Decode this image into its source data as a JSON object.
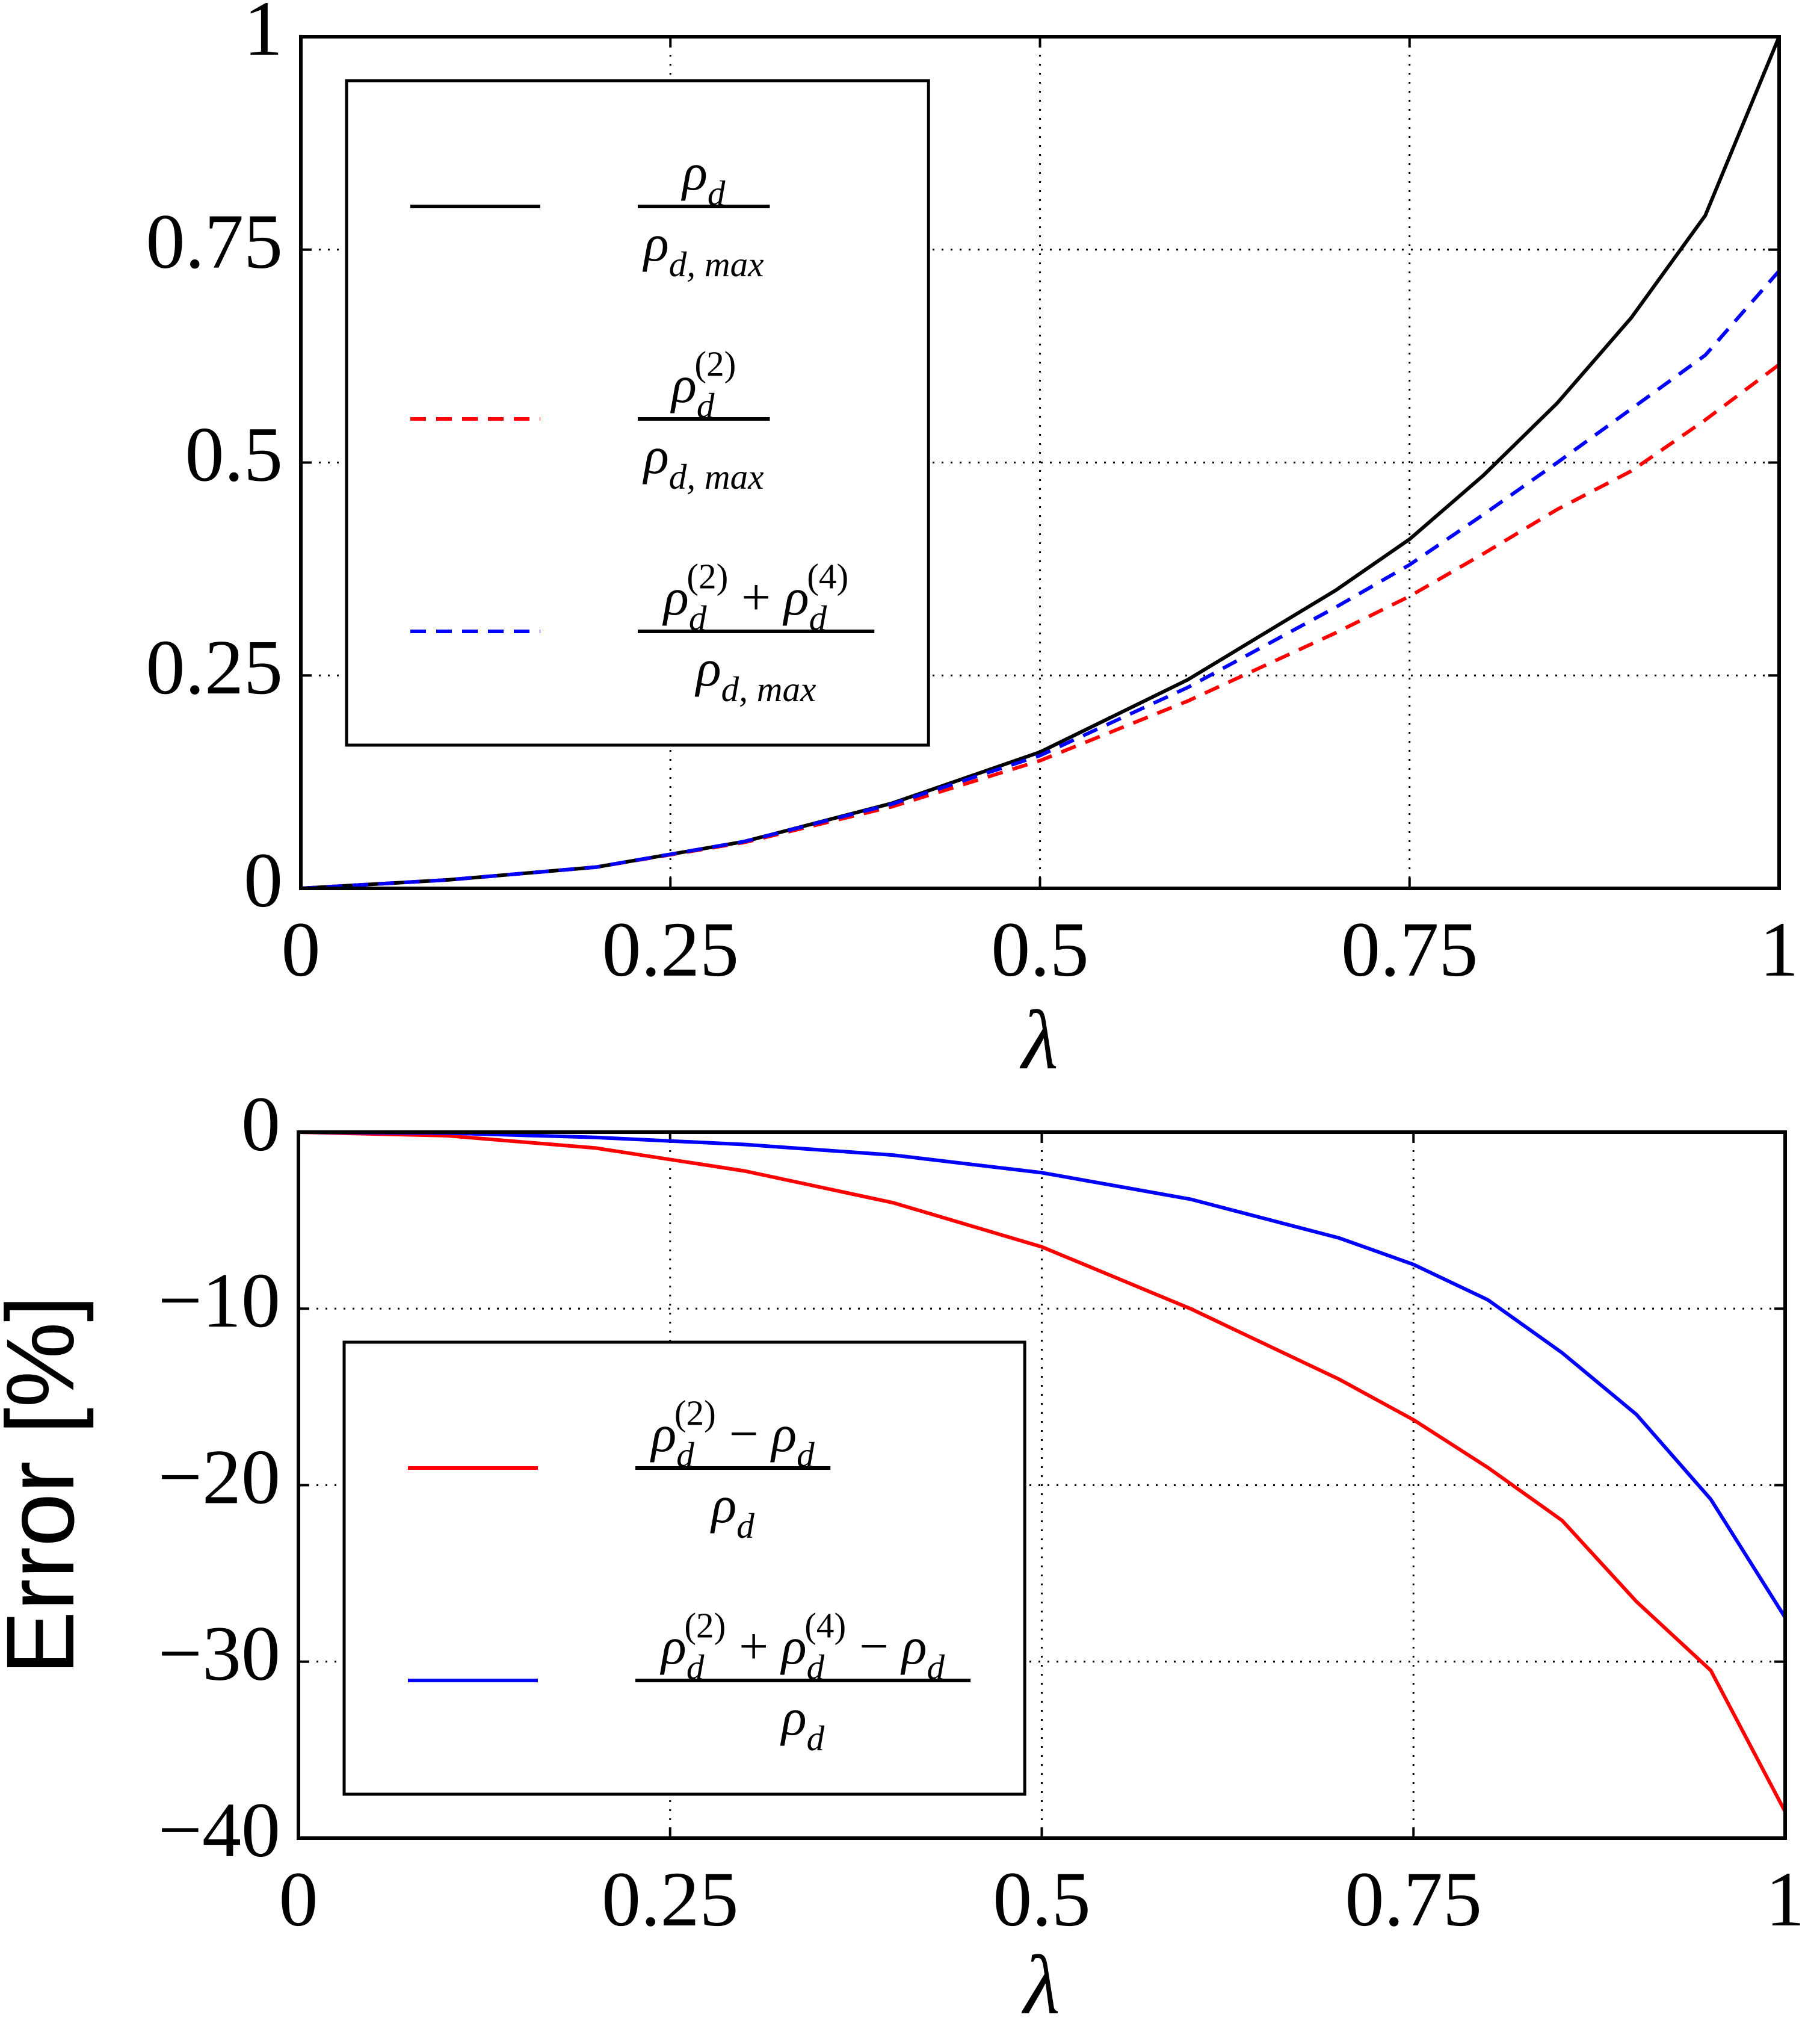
{
  "chart_data": [
    {
      "type": "line",
      "x": [
        0,
        0.1,
        0.2,
        0.3,
        0.4,
        0.5,
        0.6,
        0.7,
        0.75,
        0.8,
        0.85,
        0.9,
        0.95,
        1
      ],
      "series": [
        {
          "name": {
            "numerator": "ρd",
            "denominator": "ρd, max"
          },
          "color": "#000000",
          "linestyle": "solid",
          "values": [
            0,
            0.01,
            0.025,
            0.055,
            0.1,
            0.16,
            0.245,
            0.35,
            0.41,
            0.485,
            0.57,
            0.67,
            0.79,
            1
          ]
        },
        {
          "name": {
            "numerator": "ρd(2)",
            "denominator": "ρd, max"
          },
          "color": "#ff0000",
          "linestyle": "dashed",
          "values": [
            0,
            0.01,
            0.025,
            0.054,
            0.096,
            0.15,
            0.22,
            0.3,
            0.343,
            0.393,
            0.445,
            0.49,
            0.55,
            0.615
          ]
        },
        {
          "name": {
            "numerator": "ρd(2) + ρd(4)",
            "denominator": "ρd, max"
          },
          "color": "#0000ff",
          "linestyle": "dashed",
          "values": [
            0,
            0.01,
            0.025,
            0.055,
            0.099,
            0.156,
            0.236,
            0.33,
            0.38,
            0.439,
            0.5,
            0.563,
            0.626,
            0.725
          ]
        }
      ],
      "xlim": [
        0,
        1
      ],
      "ylim": [
        0,
        1
      ],
      "xticks": [
        0,
        0.25,
        0.5,
        0.75,
        1
      ],
      "yticks": [
        0,
        0.25,
        0.5,
        0.75,
        1
      ],
      "xlabel": "λ",
      "grid": true,
      "legend": "upper left"
    },
    {
      "type": "line",
      "x": [
        0,
        0.1,
        0.2,
        0.3,
        0.4,
        0.5,
        0.6,
        0.7,
        0.75,
        0.8,
        0.85,
        0.9,
        0.95,
        1
      ],
      "series": [
        {
          "name": {
            "numerator": "ρd(2) − ρd",
            "denominator": "ρd"
          },
          "color": "#ff0000",
          "linestyle": "solid",
          "values": [
            0,
            -0.2,
            -0.9,
            -2.2,
            -4,
            -6.5,
            -10,
            -14,
            -16.3,
            -19,
            -22,
            -26.6,
            -30.5,
            -38.5
          ]
        },
        {
          "name": {
            "numerator": "ρd(2) + ρd(4) − ρd",
            "denominator": "ρd"
          },
          "color": "#0000ff",
          "linestyle": "solid",
          "values": [
            0,
            -0.05,
            -0.3,
            -0.7,
            -1.3,
            -2.3,
            -3.8,
            -6,
            -7.5,
            -9.5,
            -12.5,
            -16,
            -20.8,
            -27.5
          ]
        }
      ],
      "xlim": [
        0,
        1
      ],
      "ylim": [
        -40,
        0
      ],
      "xticks": [
        0,
        0.25,
        0.5,
        0.75,
        1
      ],
      "yticks": [
        {
          "value": -40,
          "label": "−40"
        },
        {
          "value": -30,
          "label": "−30"
        },
        {
          "value": -20,
          "label": "−20"
        },
        {
          "value": -10,
          "label": "−10"
        },
        0
      ],
      "xlabel": "λ",
      "ylabel": "Error [%]",
      "grid": true,
      "legend": "lower left"
    }
  ]
}
